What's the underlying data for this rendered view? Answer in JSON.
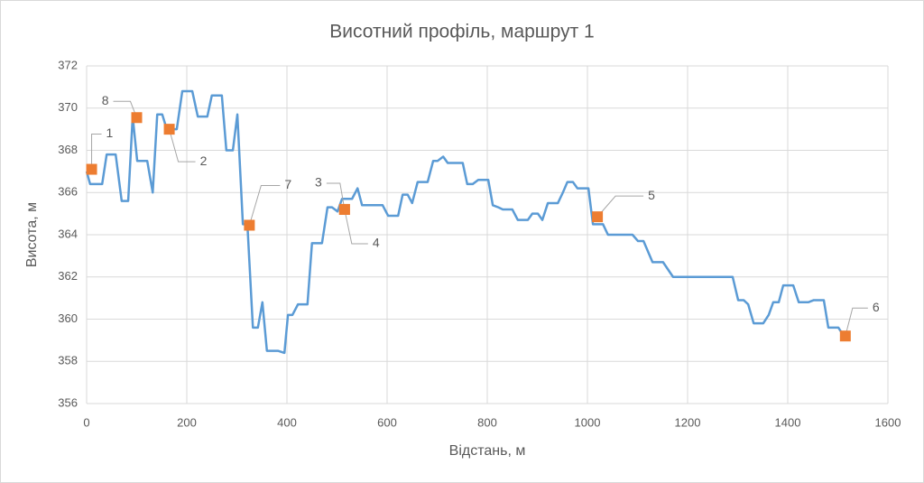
{
  "chart_data": {
    "type": "line",
    "title": "Висотний профіль, маршрут 1",
    "x_label": "Відстань, м",
    "y_label": "Висота, м",
    "xlim": [
      0,
      1600
    ],
    "xticks": [
      0,
      200,
      400,
      600,
      800,
      1000,
      1200,
      1400,
      1600
    ],
    "ylim": [
      356,
      372
    ],
    "yticks": [
      356,
      358,
      360,
      362,
      364,
      366,
      368,
      370,
      372
    ],
    "grid": true,
    "series": [
      {
        "type": "line",
        "color": "#5b9bd5",
        "x": [
          0,
          7,
          31,
          40,
          58,
          70,
          83,
          92,
          101,
          121,
          132,
          141,
          151,
          160,
          180,
          191,
          211,
          222,
          241,
          250,
          270,
          279,
          292,
          301,
          312,
          321,
          332,
          342,
          351,
          360,
          382,
          395,
          402,
          411,
          422,
          441,
          450,
          470,
          481,
          490,
          501,
          510,
          530,
          541,
          550,
          591,
          602,
          622,
          631,
          641,
          650,
          661,
          681,
          692,
          701,
          712,
          721,
          751,
          760,
          771,
          782,
          802,
          811,
          822,
          831,
          850,
          861,
          881,
          890,
          901,
          910,
          921,
          941,
          951,
          960,
          971,
          980,
          1002,
          1011,
          1031,
          1041,
          1090,
          1101,
          1112,
          1130,
          1151,
          1171,
          1290,
          1301,
          1312,
          1321,
          1332,
          1351,
          1362,
          1371,
          1382,
          1391,
          1411,
          1422,
          1441,
          1452,
          1472,
          1481,
          1501,
          1512
        ],
        "values": [
          367.0,
          366.4,
          366.4,
          367.8,
          367.8,
          365.6,
          365.6,
          369.6,
          367.5,
          367.5,
          366.0,
          369.7,
          369.7,
          369.0,
          369.0,
          370.8,
          370.8,
          369.6,
          369.6,
          370.6,
          370.6,
          368.0,
          368.0,
          369.7,
          364.5,
          364.5,
          359.6,
          359.6,
          360.8,
          358.5,
          358.5,
          358.4,
          360.2,
          360.2,
          360.7,
          360.7,
          363.6,
          363.6,
          365.3,
          365.3,
          365.1,
          365.7,
          365.7,
          366.2,
          365.4,
          365.4,
          364.9,
          364.9,
          365.9,
          365.9,
          365.5,
          366.5,
          366.5,
          367.5,
          367.5,
          367.7,
          367.4,
          367.4,
          366.4,
          366.4,
          366.6,
          366.6,
          365.4,
          365.3,
          365.2,
          365.2,
          364.7,
          364.7,
          365.0,
          365.0,
          364.7,
          365.5,
          365.5,
          366.0,
          366.5,
          366.5,
          366.2,
          366.2,
          364.5,
          364.5,
          364.0,
          364.0,
          363.7,
          363.7,
          362.7,
          362.7,
          362.0,
          362.0,
          360.9,
          360.9,
          360.7,
          359.8,
          359.8,
          360.2,
          360.8,
          360.8,
          361.6,
          361.6,
          360.8,
          360.8,
          360.9,
          360.9,
          359.6,
          359.6,
          359.2
        ]
      },
      {
        "type": "scatter",
        "color": "#ed7d31",
        "x": [
          10,
          100,
          165,
          325,
          515,
          515,
          1020,
          1515
        ],
        "values": [
          367.1,
          369.55,
          369.0,
          364.45,
          365.2,
          365.2,
          364.85,
          359.2
        ],
        "labels": [
          "1",
          "8",
          "2",
          "7",
          "3",
          "4",
          "5",
          "6"
        ]
      }
    ]
  }
}
